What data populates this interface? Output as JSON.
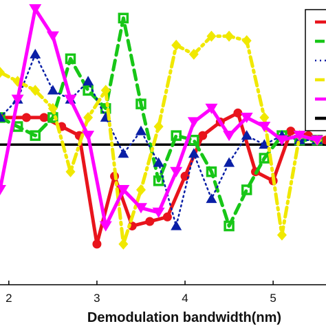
{
  "chart_data": {
    "type": "line",
    "xlabel": "Demodulation bandwidth(nm)",
    "ylabel": "",
    "title": "",
    "xlim": [
      1.9,
      5.6
    ],
    "ylim": [
      -1.55,
      1.6
    ],
    "x_ticks": [
      2,
      3,
      4,
      5
    ],
    "x_tick_labels": [
      "2",
      "3",
      "4",
      "5"
    ],
    "grid": false,
    "legend_position": "top-right",
    "legend_entries": 6,
    "reference_line": {
      "y": 0,
      "color": "#000000"
    },
    "series": [
      {
        "color": "#e8141c",
        "style": "solid",
        "marker": "circle",
        "x": [
          1.9,
          2.2,
          2.4,
          2.6,
          2.8,
          3.0,
          3.2,
          3.4,
          3.6,
          3.8,
          4.0,
          4.2,
          4.4,
          4.6,
          4.8,
          5.0,
          5.2,
          5.4,
          5.6
        ],
        "y": [
          0.3,
          0.3,
          0.3,
          0.2,
          0.1,
          -1.1,
          -0.35,
          -0.9,
          -0.85,
          -0.8,
          -0.35,
          0.1,
          0.25,
          0.35,
          -0.3,
          -0.4,
          0.15,
          0.1,
          0.05
        ]
      },
      {
        "color": "#17c617",
        "style": "dashed",
        "marker": "square",
        "x": [
          1.9,
          2.1,
          2.3,
          2.5,
          2.7,
          2.9,
          3.1,
          3.3,
          3.5,
          3.7,
          3.9,
          4.1,
          4.3,
          4.5,
          4.7,
          4.9,
          5.1,
          5.3,
          5.5
        ],
        "y": [
          0.3,
          0.2,
          0.1,
          0.3,
          0.95,
          0.6,
          0.4,
          1.4,
          0.45,
          -0.4,
          0.1,
          0.05,
          -0.3,
          -0.9,
          -0.5,
          -0.15,
          0.1,
          0.05,
          0.05
        ]
      },
      {
        "color": "#0a1fa6",
        "style": "dotted",
        "marker": "triangle-up",
        "x": [
          1.9,
          2.1,
          2.3,
          2.5,
          2.7,
          2.9,
          3.1,
          3.3,
          3.5,
          3.7,
          3.9,
          4.1,
          4.3,
          4.5,
          4.7,
          4.9,
          5.1,
          5.3,
          5.5
        ],
        "y": [
          0.3,
          0.5,
          1.0,
          0.6,
          0.5,
          0.7,
          0.3,
          -0.1,
          0.15,
          -0.2,
          -0.9,
          -0.1,
          -0.6,
          -0.2,
          0.1,
          0.0,
          0.1,
          0.05,
          0.05
        ]
      },
      {
        "color": "#f0e800",
        "style": "dash-dot",
        "marker": "diamond",
        "x": [
          1.9,
          2.1,
          2.3,
          2.5,
          2.7,
          2.9,
          3.1,
          3.3,
          3.5,
          3.7,
          3.9,
          4.1,
          4.3,
          4.5,
          4.7,
          4.9,
          5.1,
          5.3,
          5.5
        ],
        "y": [
          0.8,
          0.7,
          0.6,
          0.4,
          -0.3,
          0.3,
          0.6,
          -1.1,
          -0.5,
          0.2,
          1.1,
          1.0,
          1.2,
          1.2,
          1.15,
          0.3,
          -1.0,
          0.1,
          0.05
        ]
      },
      {
        "color": "#ff00ff",
        "style": "solid",
        "marker": "triangle-down",
        "x": [
          1.9,
          2.1,
          2.3,
          2.5,
          2.7,
          2.9,
          3.1,
          3.3,
          3.5,
          3.7,
          3.9,
          4.1,
          4.3,
          4.5,
          4.7,
          4.9,
          5.1,
          5.3,
          5.5
        ],
        "y": [
          -0.5,
          0.5,
          1.5,
          1.2,
          0.5,
          0.1,
          -0.9,
          -0.5,
          -0.7,
          -0.75,
          -0.3,
          0.25,
          0.4,
          0.1,
          0.3,
          0.2,
          0.05,
          0.1,
          0.05
        ]
      }
    ]
  }
}
